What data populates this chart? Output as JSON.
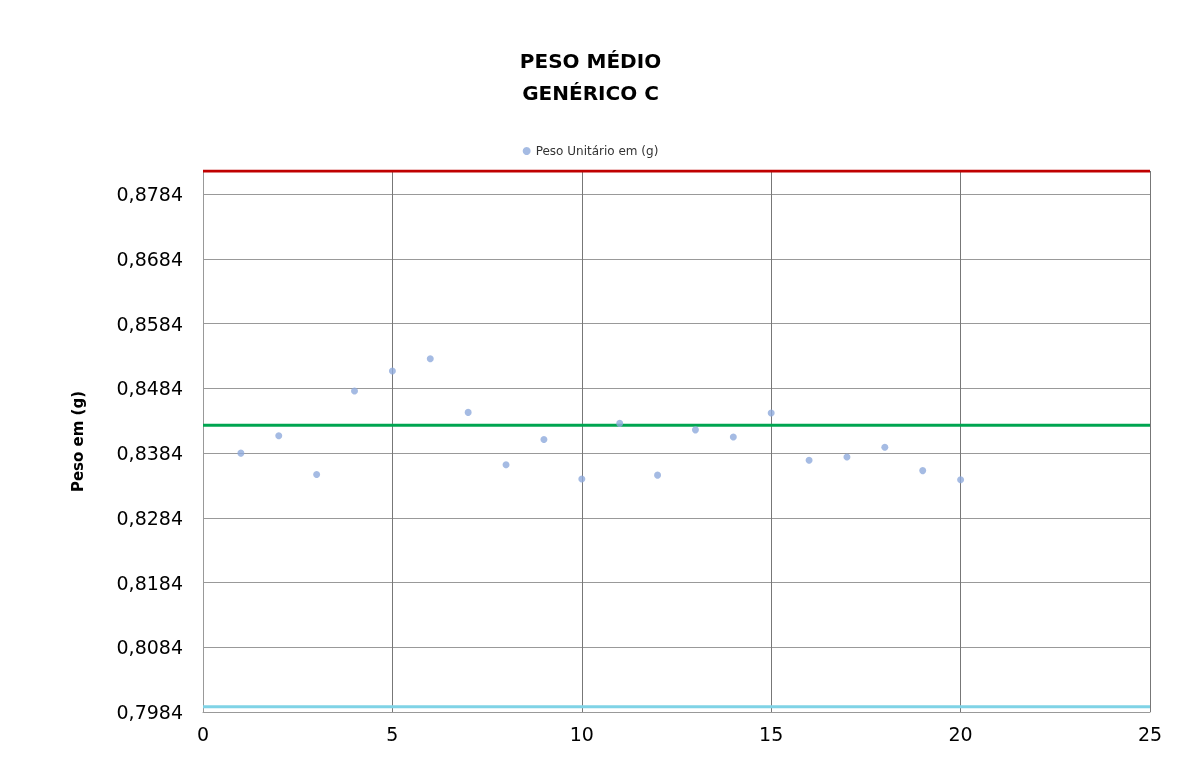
{
  "chart_data": {
    "type": "scatter",
    "title": "PESO MÉDIO\nGENÉRICO C",
    "ylabel": "Peso em (g)",
    "x": [
      1,
      2,
      3,
      4,
      5,
      6,
      7,
      8,
      9,
      10,
      11,
      12,
      13,
      14,
      15,
      16,
      17,
      18,
      19,
      20
    ],
    "series": [
      {
        "name": "Peso Unitário em (g)",
        "color": "#8faadc",
        "values": [
          0.8384,
          0.8411,
          0.8351,
          0.848,
          0.8511,
          0.853,
          0.8447,
          0.8366,
          0.8405,
          0.8344,
          0.843,
          0.835,
          0.842,
          0.8409,
          0.8446,
          0.8373,
          0.8378,
          0.8393,
          0.8357,
          0.8343
        ]
      }
    ],
    "xlim": [
      0,
      25
    ],
    "xticks": [
      0,
      5,
      10,
      15,
      20,
      25
    ],
    "ylim": [
      0.7984,
      0.882
    ],
    "yticks": [
      {
        "value": 0.7984,
        "label": "0,7984"
      },
      {
        "value": 0.8084,
        "label": "0,8084"
      },
      {
        "value": 0.8184,
        "label": "0,8184"
      },
      {
        "value": 0.8284,
        "label": "0,8284"
      },
      {
        "value": 0.8384,
        "label": "0,8384"
      },
      {
        "value": 0.8484,
        "label": "0,8484"
      },
      {
        "value": 0.8584,
        "label": "0,8584"
      },
      {
        "value": 0.8684,
        "label": "0,8684"
      },
      {
        "value": 0.8784,
        "label": "0,8784"
      }
    ],
    "ref_lines": [
      {
        "axis": "y",
        "value": 0.882,
        "color": "#c00000"
      },
      {
        "axis": "y",
        "value": 0.8427,
        "color": "#00a550"
      },
      {
        "axis": "y",
        "value": 0.7992,
        "color": "#7fd3e6"
      }
    ],
    "grid": true,
    "legend": "top",
    "marker": "circle"
  }
}
